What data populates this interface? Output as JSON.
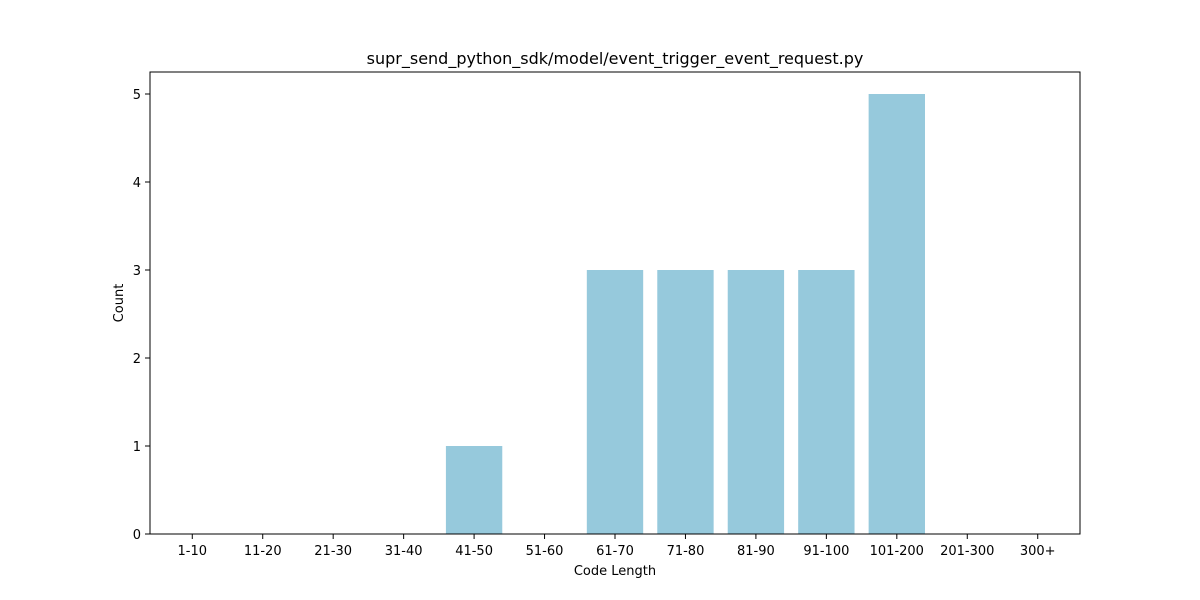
{
  "chart_data": {
    "type": "bar",
    "title": "supr_send_python_sdk/model/event_trigger_event_request.py",
    "xlabel": "Code Length",
    "ylabel": "Count",
    "categories": [
      "1-10",
      "11-20",
      "21-30",
      "31-40",
      "41-50",
      "51-60",
      "61-70",
      "71-80",
      "81-90",
      "91-100",
      "101-200",
      "201-300",
      "300+"
    ],
    "values": [
      0,
      0,
      0,
      0,
      1,
      0,
      3,
      3,
      3,
      3,
      5,
      0,
      0
    ],
    "ylim": [
      0,
      5.25
    ],
    "yticks": [
      0,
      1,
      2,
      3,
      4,
      5
    ],
    "bar_color": "#96c9dc",
    "grid": false,
    "legend": "none"
  }
}
